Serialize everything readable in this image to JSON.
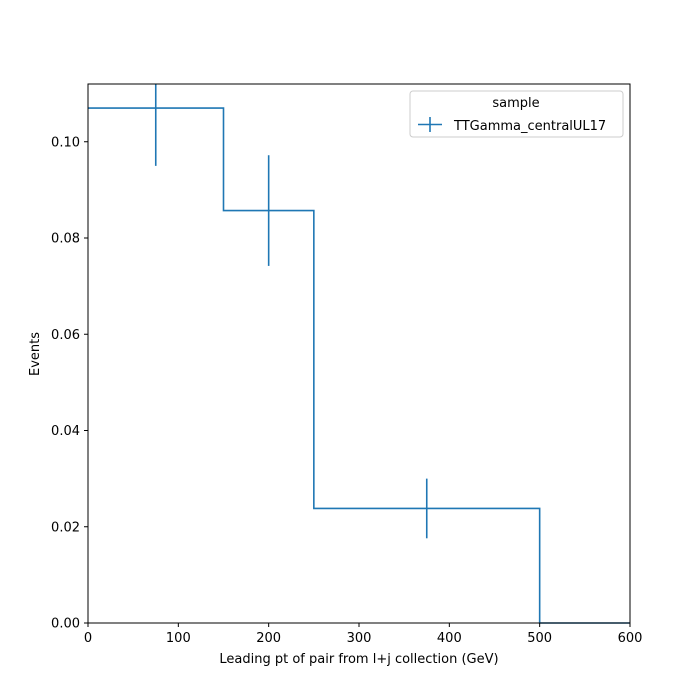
{
  "chart_data": {
    "type": "histogram",
    "xlabel": "Leading pt of pair from l+j collection (GeV)",
    "ylabel": "Events",
    "xlim": [
      0,
      600
    ],
    "ylim": [
      0,
      0.112
    ],
    "xticks": [
      0,
      100,
      200,
      300,
      400,
      500,
      600
    ],
    "xtick_labels": [
      "0",
      "100",
      "200",
      "300",
      "400",
      "500",
      "600"
    ],
    "yticks": [
      0.0,
      0.02,
      0.04,
      0.06,
      0.08,
      0.1
    ],
    "ytick_labels": [
      "0.00",
      "0.02",
      "0.04",
      "0.06",
      "0.08",
      "0.10"
    ],
    "grid": false,
    "legend": {
      "title": "sample",
      "placement": "top-right"
    },
    "series": [
      {
        "name": "TTGamma_centralUL17",
        "color": "#1f77b4",
        "bin_edges": [
          0,
          150,
          250,
          500,
          600
        ],
        "values": [
          0.107,
          0.0857,
          0.0238,
          0.0
        ],
        "errors": [
          0.012,
          0.0115,
          0.0062,
          0.0
        ]
      }
    ]
  }
}
